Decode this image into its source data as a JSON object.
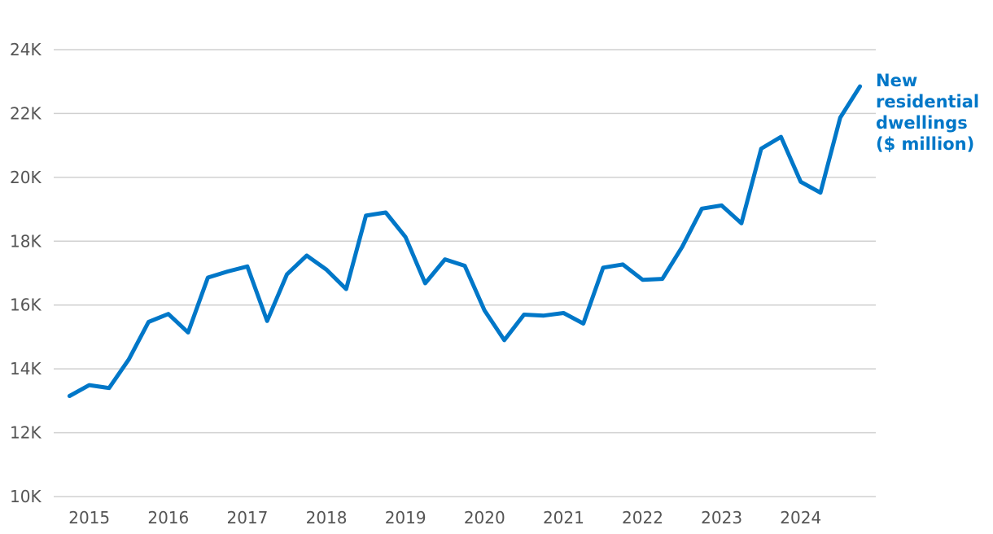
{
  "chart_data": {
    "type": "line",
    "title": "",
    "xlabel": "",
    "ylabel": "",
    "x": [
      2014.75,
      2015.0,
      2015.25,
      2015.5,
      2015.75,
      2016.0,
      2016.25,
      2016.5,
      2016.75,
      2017.0,
      2017.25,
      2017.5,
      2017.75,
      2018.0,
      2018.25,
      2018.5,
      2018.75,
      2019.0,
      2019.25,
      2019.5,
      2019.75,
      2020.0,
      2020.25,
      2020.5,
      2020.75,
      2021.0,
      2021.25,
      2021.5,
      2021.75,
      2022.0,
      2022.25,
      2022.5,
      2022.75,
      2023.0,
      2023.25,
      2023.5,
      2023.75,
      2024.0,
      2024.25,
      2024.5,
      2024.75
    ],
    "series": [
      {
        "name": "New residential dwellings ($ million)",
        "label_lines": [
          "New",
          "residential",
          "dwellings",
          "($ million)"
        ],
        "color": "#0077c8",
        "values": [
          13150,
          13490,
          13400,
          14300,
          15470,
          15720,
          15140,
          16860,
          17050,
          17210,
          15500,
          16960,
          17550,
          17110,
          16500,
          18800,
          18900,
          18130,
          16680,
          17430,
          17230,
          15830,
          14900,
          15700,
          15670,
          15750,
          15420,
          17170,
          17270,
          16790,
          16820,
          17820,
          19020,
          19120,
          18560,
          20900,
          21270,
          19860,
          19520,
          21870,
          22850
        ]
      }
    ],
    "y_ticks": [
      10000,
      12000,
      14000,
      16000,
      18000,
      20000,
      22000,
      24000
    ],
    "y_tick_labels": [
      "10K",
      "12K",
      "14K",
      "16K",
      "18K",
      "20K",
      "22K",
      "24K"
    ],
    "ylim": [
      10000,
      24000
    ],
    "x_ticks": [
      2015,
      2016,
      2017,
      2018,
      2019,
      2020,
      2021,
      2022,
      2023,
      2024
    ],
    "x_tick_labels": [
      "2015",
      "2016",
      "2017",
      "2018",
      "2019",
      "2020",
      "2021",
      "2022",
      "2023",
      "2024"
    ],
    "xlim": [
      2014.55,
      2024.95
    ],
    "grid": true,
    "legend": "direct label at line end, right"
  }
}
